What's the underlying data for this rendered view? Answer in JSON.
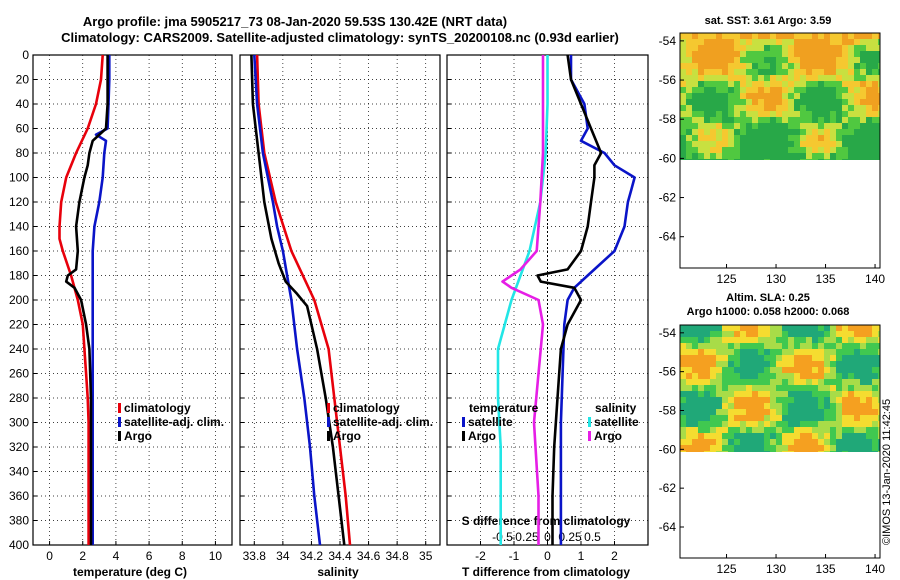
{
  "header": {
    "title1": "Argo profile: jma 5905217_73 08-Jan-2020 59.53S 130.42E (NRT data)",
    "title2": "Climatology: CARS2009. Satellite-adjusted climatology: synTS_20200108.nc (0.93d earlier)"
  },
  "colors": {
    "climatology": "#e8000b",
    "satellite": "#0a14c8",
    "argo": "#000000",
    "s_satellite": "#22e6e6",
    "s_argo": "#e61ee6"
  },
  "chart_data": [
    {
      "type": "line",
      "id": "temperature",
      "xlabel": "temperature (deg C)",
      "ylabel": "",
      "xlim": [
        -1,
        11
      ],
      "ylim": [
        400,
        0
      ],
      "xticks": [
        0,
        2,
        4,
        6,
        8,
        10
      ],
      "yticks": [
        0,
        20,
        40,
        60,
        80,
        100,
        120,
        140,
        160,
        180,
        200,
        220,
        240,
        260,
        280,
        300,
        320,
        340,
        360,
        380,
        400
      ],
      "legend": [
        "climatology",
        "satellite-adj. clim.",
        "Argo"
      ],
      "series": [
        {
          "name": "climatology",
          "depth": [
            0,
            20,
            40,
            60,
            80,
            100,
            120,
            140,
            150,
            160,
            180,
            200,
            220,
            240,
            260,
            280,
            300,
            320,
            340,
            360,
            380,
            400
          ],
          "values": [
            3.2,
            3.1,
            2.8,
            2.3,
            1.6,
            1.0,
            0.7,
            0.6,
            0.6,
            0.8,
            1.3,
            1.7,
            2.0,
            2.1,
            2.2,
            2.3,
            2.35,
            2.35,
            2.35,
            2.35,
            2.35,
            2.35
          ]
        },
        {
          "name": "satellite-adj. clim.",
          "depth": [
            0,
            20,
            40,
            60,
            65,
            70,
            80,
            100,
            120,
            140,
            160,
            180,
            200,
            240,
            280,
            320,
            360,
            400
          ],
          "values": [
            3.6,
            3.6,
            3.55,
            3.5,
            2.8,
            3.4,
            3.3,
            3.2,
            3.0,
            2.7,
            2.6,
            2.6,
            2.6,
            2.6,
            2.6,
            2.6,
            2.6,
            2.6
          ]
        },
        {
          "name": "Argo",
          "depth": [
            0,
            20,
            40,
            60,
            70,
            80,
            90,
            100,
            120,
            140,
            160,
            175,
            180,
            185,
            190,
            200,
            220,
            240,
            280,
            320,
            360,
            400
          ],
          "values": [
            3.5,
            3.5,
            3.5,
            3.4,
            2.6,
            2.4,
            2.3,
            2.1,
            1.8,
            1.6,
            1.7,
            1.6,
            1.1,
            1.0,
            1.5,
            1.9,
            2.2,
            2.4,
            2.5,
            2.5,
            2.5,
            2.5
          ]
        }
      ]
    },
    {
      "type": "line",
      "id": "salinity",
      "xlabel": "salinity",
      "xlim": [
        33.7,
        35.1
      ],
      "ylim": [
        400,
        0
      ],
      "xticks": [
        33.8,
        34,
        34.2,
        34.4,
        34.6,
        34.8,
        35
      ],
      "xticklabels": [
        "33.8",
        "34",
        "34.2",
        "34.4",
        "34.6",
        "34.8",
        "35"
      ],
      "legend": [
        "climatology",
        "satellite-adj. clim.",
        "Argo"
      ],
      "series": [
        {
          "name": "climatology",
          "depth": [
            0,
            40,
            80,
            120,
            160,
            200,
            240,
            280,
            320,
            360,
            400
          ],
          "values": [
            33.82,
            33.83,
            33.87,
            33.95,
            34.06,
            34.22,
            34.32,
            34.36,
            34.4,
            34.44,
            34.47
          ]
        },
        {
          "name": "satellite-adj. clim.",
          "depth": [
            0,
            40,
            80,
            120,
            140,
            160,
            180,
            200,
            240,
            280,
            320,
            360,
            400
          ],
          "values": [
            33.8,
            33.82,
            33.86,
            33.93,
            33.96,
            34.0,
            34.03,
            34.06,
            34.1,
            34.15,
            34.19,
            34.22,
            34.26
          ]
        },
        {
          "name": "Argo",
          "depth": [
            0,
            40,
            80,
            120,
            150,
            170,
            185,
            195,
            205,
            220,
            240,
            280,
            320,
            360,
            400
          ],
          "values": [
            33.78,
            33.79,
            33.83,
            33.87,
            33.92,
            33.97,
            34.02,
            34.1,
            34.17,
            34.2,
            34.24,
            34.3,
            34.35,
            34.39,
            34.43
          ]
        }
      ]
    },
    {
      "type": "line",
      "id": "difference",
      "xlabel": "T difference from climatology",
      "secondary_xlabel": "S difference from climatology",
      "xlim": [
        -3,
        3
      ],
      "ylim": [
        400,
        0
      ],
      "xticks": [
        -2,
        -1,
        0,
        1,
        2
      ],
      "secondary_xticks": [
        -0.5,
        -0.25,
        0,
        0.25,
        0.5
      ],
      "secondary_xticklabels": [
        "-0.5",
        "-0.25",
        "0",
        "0.25",
        "0.5"
      ],
      "legend_titles": [
        "temperature",
        "salinity"
      ],
      "legend": [
        "satellite",
        "Argo",
        "satellite",
        "Argo"
      ],
      "series": [
        {
          "name": "temperature satellite",
          "depth": [
            0,
            20,
            40,
            60,
            70,
            80,
            90,
            100,
            110,
            120,
            140,
            160,
            180,
            190,
            200,
            220,
            260,
            300,
            340,
            400
          ],
          "values": [
            0.7,
            0.7,
            1.1,
            1.2,
            1.0,
            1.7,
            2.0,
            2.6,
            2.5,
            2.4,
            2.3,
            2.0,
            1.2,
            0.8,
            0.6,
            0.5,
            0.45,
            0.4,
            0.4,
            0.4
          ]
        },
        {
          "name": "temperature Argo",
          "depth": [
            0,
            20,
            40,
            60,
            80,
            90,
            100,
            120,
            140,
            160,
            175,
            180,
            185,
            190,
            200,
            220,
            240,
            280,
            320,
            360,
            400
          ],
          "values": [
            0.6,
            0.7,
            1.0,
            1.3,
            1.6,
            1.4,
            1.4,
            1.3,
            1.2,
            1.0,
            0.6,
            -0.3,
            -0.2,
            0.8,
            1.0,
            0.6,
            0.4,
            0.3,
            0.2,
            0.15,
            0.15
          ]
        },
        {
          "name": "salinity satellite",
          "depth": [
            0,
            40,
            80,
            120,
            160,
            180,
            200,
            240,
            280,
            320,
            360,
            400
          ],
          "values": [
            0.0,
            0.0,
            -0.02,
            -0.08,
            -0.2,
            -0.3,
            -0.4,
            -0.55,
            -0.55,
            -0.52,
            -0.52,
            -0.52
          ]
        },
        {
          "name": "salinity Argo",
          "depth": [
            0,
            40,
            80,
            120,
            160,
            175,
            185,
            190,
            200,
            220,
            260,
            300,
            360,
            400
          ],
          "values": [
            -0.05,
            -0.05,
            -0.05,
            -0.08,
            -0.12,
            -0.3,
            -0.5,
            -0.4,
            -0.1,
            -0.05,
            -0.1,
            -0.15,
            -0.1,
            -0.1
          ]
        }
      ]
    }
  ],
  "depth_ticklabels": [
    "0",
    "20",
    "40",
    "60",
    "80",
    "100",
    "120",
    "140",
    "160",
    "180",
    "200",
    "220",
    "240",
    "260",
    "280",
    "300",
    "320",
    "340",
    "360",
    "380",
    "400"
  ],
  "temperature_xticklabels": [
    "0",
    "2",
    "4",
    "6",
    "8",
    "10"
  ],
  "difference_xticklabels": [
    "-2",
    "-1",
    "0",
    "1",
    "2"
  ],
  "legend_labels": {
    "climatology": "climatology",
    "satellite_adj": "satellite-adj. clim.",
    "argo": "Argo",
    "temperature": "temperature",
    "salinity": "salinity",
    "satellite": "satellite"
  },
  "maps": {
    "sst_title": "sat. SST: 3.61 Argo: 3.59",
    "sla_title1": "Altim. SLA: 0.25",
    "sla_title2": "Argo h1000: 0.058 h2000: 0.068",
    "lat_ticklabels": [
      "-54",
      "-56",
      "-58",
      "-60",
      "-62",
      "-64"
    ],
    "lon_ticklabels": [
      "125",
      "130",
      "135",
      "140"
    ]
  },
  "credit": "©IMOS 13-Jan-2020 11:42:45"
}
